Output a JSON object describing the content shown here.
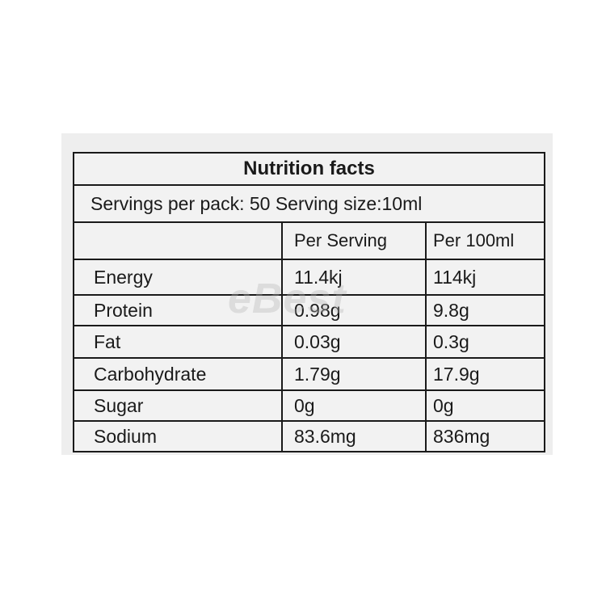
{
  "label": {
    "title": "Nutrition facts",
    "servings_line": "Servings per pack: 50  Serving size:10ml",
    "columns": [
      "",
      "Per Serving",
      "Per 100ml"
    ],
    "rows": [
      {
        "nutrient": "Energy",
        "per_serving": "11.4kj",
        "per_100ml": "114kj"
      },
      {
        "nutrient": "Protein",
        "per_serving": "0.98g",
        "per_100ml": "9.8g"
      },
      {
        "nutrient": "Fat",
        "per_serving": "0.03g",
        "per_100ml": "0.3g"
      },
      {
        "nutrient": "Carbohydrate",
        "per_serving": "1.79g",
        "per_100ml": "17.9g"
      },
      {
        "nutrient": "Sugar",
        "per_serving": "0g",
        "per_100ml": "0g"
      },
      {
        "nutrient": "Sodium",
        "per_serving": "83.6mg",
        "per_100ml": "836mg"
      }
    ]
  },
  "watermark": "eBest"
}
